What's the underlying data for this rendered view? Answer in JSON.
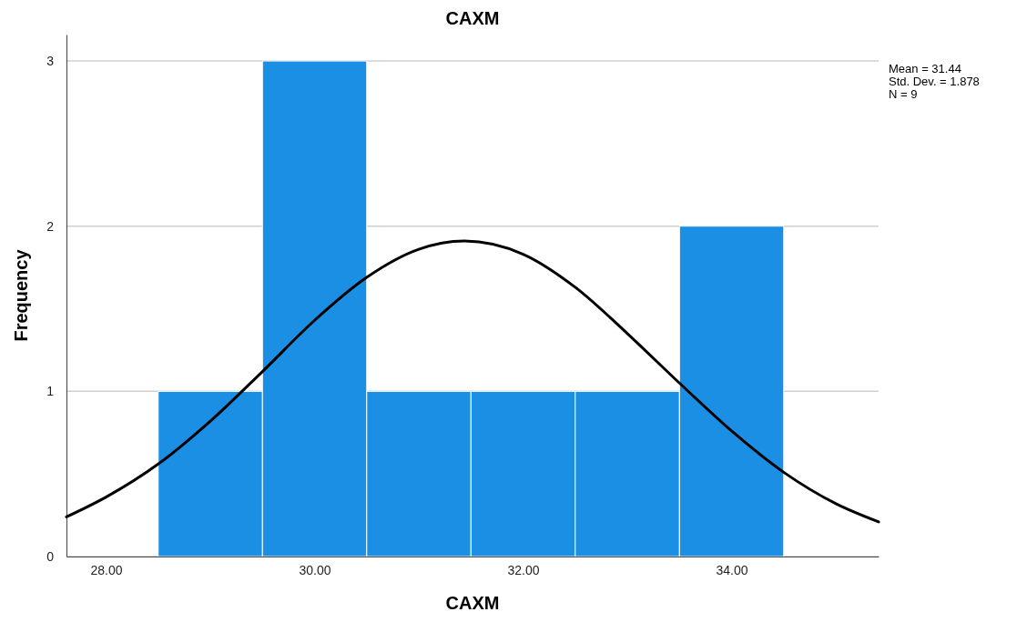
{
  "chart_data": {
    "type": "histogram",
    "title": "CAXM",
    "xlabel": "CAXM",
    "ylabel": "Frequency",
    "bins": [
      28.5,
      29.5,
      30.5,
      31.5,
      32.5,
      33.5,
      34.5
    ],
    "values": [
      1,
      3,
      1,
      1,
      1,
      2
    ],
    "color": "#1a8fe3",
    "series": [
      {
        "type": "line",
        "color": "#000000",
        "x": [
          27.62,
          28,
          28.5,
          29,
          29.5,
          30,
          30.5,
          31,
          31.44,
          32,
          32.5,
          33,
          33.5,
          34,
          34.5,
          35,
          35.41
        ],
        "values": [
          0.24,
          0.36,
          0.56,
          0.82,
          1.12,
          1.43,
          1.69,
          1.86,
          1.91,
          1.83,
          1.63,
          1.35,
          1.05,
          0.76,
          0.51,
          0.32,
          0.21
        ]
      }
    ],
    "xlim": [
      27.62,
      35.41
    ],
    "xticks": [
      {
        "value": 28,
        "label": "28.00"
      },
      {
        "value": 30,
        "label": "30.00"
      },
      {
        "value": 32,
        "label": "32.00"
      },
      {
        "value": 34,
        "label": "34.00"
      }
    ],
    "ylim": [
      0,
      3.16
    ],
    "yticks": [
      0,
      1,
      2,
      3
    ],
    "grid": "y",
    "annotations": [
      "Mean = 31.44",
      "Std. Dev. = 1.878",
      "N = 9"
    ]
  }
}
